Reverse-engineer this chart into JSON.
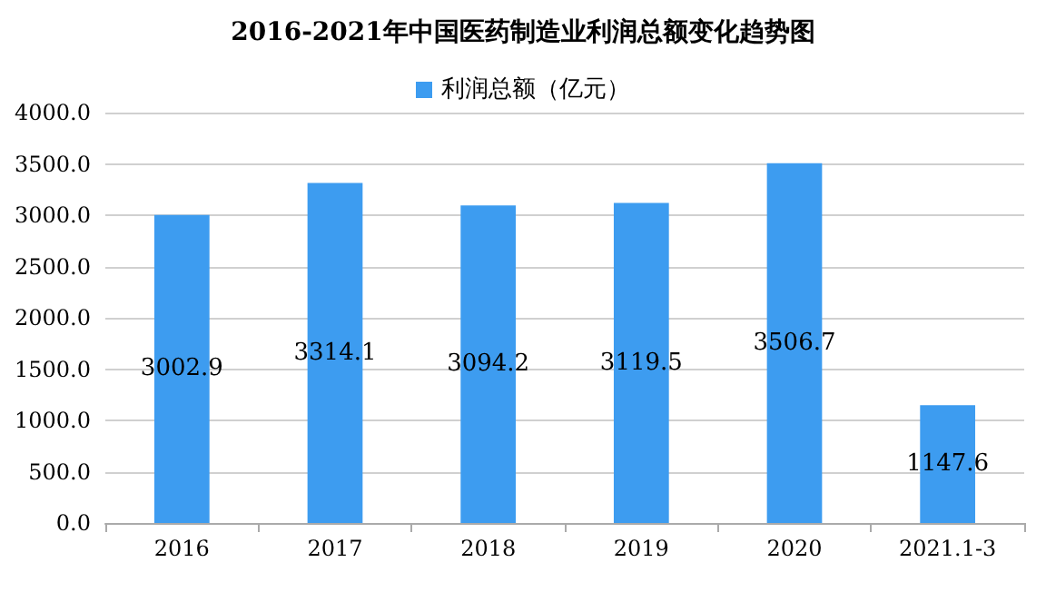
{
  "chart_data": {
    "type": "bar",
    "title": "2016-2021年中国医药制造业利润总额变化趋势图",
    "categories": [
      "2016",
      "2017",
      "2018",
      "2019",
      "2020",
      "2021.1-3"
    ],
    "series": [
      {
        "name": "利润总额（亿元）",
        "color": "#3d9cf0",
        "values": [
          3002.9,
          3314.1,
          3094.2,
          3119.5,
          3506.7,
          1147.6
        ]
      }
    ],
    "ylim": [
      0,
      4000
    ],
    "yticks": [
      {
        "value": 0,
        "label": "0.0"
      },
      {
        "value": 500,
        "label": "500.0"
      },
      {
        "value": 1000,
        "label": "1000.0"
      },
      {
        "value": 1500,
        "label": "1500.0"
      },
      {
        "value": 2000,
        "label": "2000.0"
      },
      {
        "value": 2500,
        "label": "2500.0"
      },
      {
        "value": 3000,
        "label": "3000.0"
      },
      {
        "value": 3500,
        "label": "3500.0"
      },
      {
        "value": 4000,
        "label": "4000.0"
      }
    ],
    "grid": "y",
    "legend": "top",
    "data_labels": true
  }
}
